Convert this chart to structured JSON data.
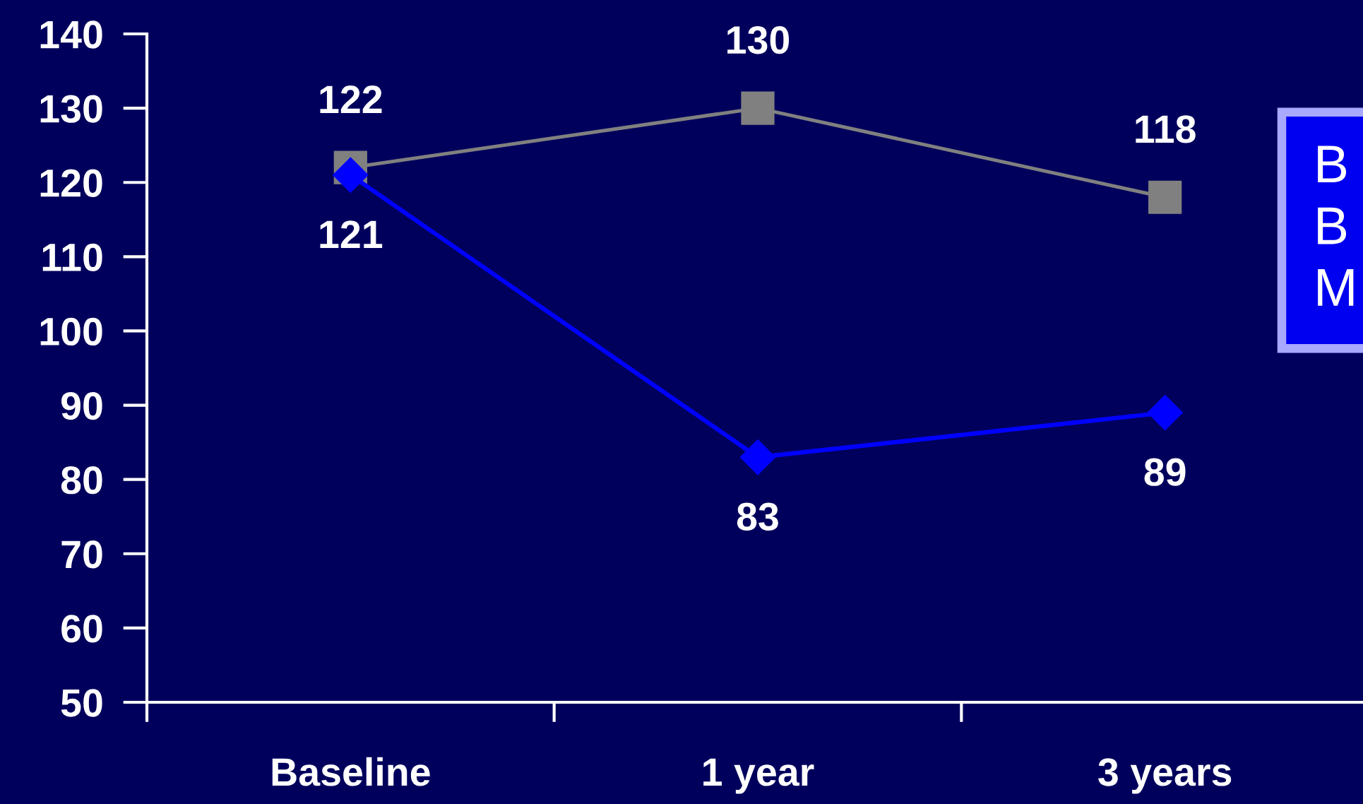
{
  "chart_data": {
    "type": "line",
    "categories": [
      "Baseline",
      "1 year",
      "3 years"
    ],
    "series": [
      {
        "color": "#808080",
        "marker": "square",
        "values": [
          122,
          130,
          118
        ]
      },
      {
        "color": "#0000ff",
        "marker": "diamond",
        "values": [
          121,
          83,
          89
        ]
      }
    ],
    "ylim": [
      50,
      140
    ],
    "yticks": [
      50,
      60,
      70,
      80,
      90,
      100,
      110,
      120,
      130,
      140
    ],
    "data_labels": true,
    "grid": false,
    "annotations": [
      "B",
      "B",
      "M"
    ]
  }
}
